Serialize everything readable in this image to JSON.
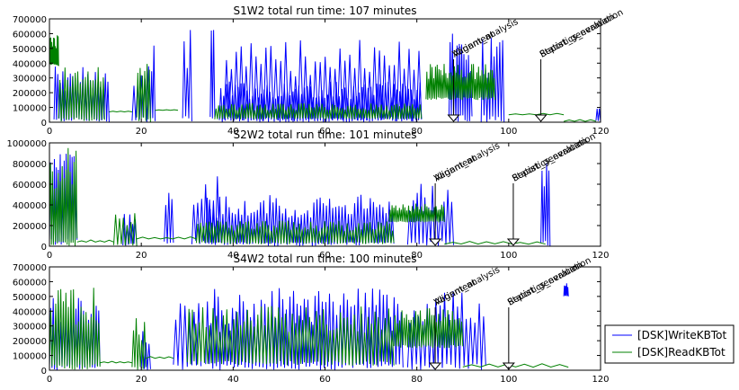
{
  "chart_data": [
    {
      "type": "line",
      "title": "S1W2 total run time: 107 minutes",
      "xlim": [
        0,
        120
      ],
      "ylim": [
        0,
        700000
      ],
      "xticks": [
        0,
        20,
        40,
        60,
        80,
        100,
        120
      ],
      "yticks": [
        0,
        100000,
        200000,
        300000,
        400000,
        500000,
        600000,
        700000
      ],
      "xtick_labels": [
        "0",
        "20",
        "40",
        "60",
        "80",
        "100",
        "120"
      ],
      "ytick_labels": [
        "0",
        "100000",
        "200000",
        "300000",
        "400000",
        "500000",
        "600000",
        "700000"
      ],
      "annotations": [
        {
          "text": "Alignment",
          "x": 88
        },
        {
          "text": "Variant_analysis",
          "x": 88
        },
        {
          "text": "Report_generation",
          "x": 107
        },
        {
          "text": "Statistics_evaluation",
          "x": 107
        }
      ],
      "series": [
        {
          "name": "[DSK]WriteKBTot",
          "color": "#0000ff",
          "segments": [
            {
              "x0": 1,
              "x1": 13,
              "base": 0,
              "peak": 380000,
              "spikes": 22
            },
            {
              "x0": 18,
              "x1": 22,
              "base": 0,
              "peak": 420000,
              "spikes": 5
            },
            {
              "x0": 22,
              "x1": 23,
              "base": 0,
              "peak": 620000,
              "spikes": 2
            },
            {
              "x0": 29,
              "x1": 31,
              "base": 0,
              "peak": 630000,
              "spikes": 3
            },
            {
              "x0": 35,
              "x1": 36,
              "base": 0,
              "peak": 640000,
              "spikes": 2
            },
            {
              "x0": 37,
              "x1": 81,
              "base": 0,
              "peak": 280000,
              "spikes": 70
            },
            {
              "x0": 38,
              "x1": 81,
              "base": 0,
              "peak": 560000,
              "spikes": 40
            },
            {
              "x0": 87,
              "x1": 92,
              "base": 0,
              "peak": 620000,
              "spikes": 10
            },
            {
              "x0": 94,
              "x1": 99,
              "base": 0,
              "peak": 580000,
              "spikes": 8
            },
            {
              "x0": 119,
              "x1": 120,
              "base": 0,
              "peak": 130000,
              "spikes": 2
            }
          ]
        },
        {
          "name": "[DSK]ReadKBTot",
          "color": "#008000",
          "segments": [
            {
              "x0": 0,
              "x1": 2,
              "base": 380000,
              "peak": 590000,
              "spikes": 10
            },
            {
              "x0": 2,
              "x1": 12,
              "base": 0,
              "peak": 390000,
              "spikes": 18
            },
            {
              "x0": 13,
              "x1": 18,
              "base": 70000,
              "peak": 75000,
              "spikes": 3
            },
            {
              "x0": 19,
              "x1": 22,
              "base": 0,
              "peak": 430000,
              "spikes": 6
            },
            {
              "x0": 23,
              "x1": 28,
              "base": 80000,
              "peak": 85000,
              "spikes": 3
            },
            {
              "x0": 36,
              "x1": 81,
              "base": 20000,
              "peak": 130000,
              "spikes": 80
            },
            {
              "x0": 82,
              "x1": 97,
              "base": 150000,
              "peak": 400000,
              "spikes": 40
            },
            {
              "x0": 100,
              "x1": 112,
              "base": 50000,
              "peak": 60000,
              "spikes": 4
            },
            {
              "x0": 112,
              "x1": 119,
              "base": 5000,
              "peak": 20000,
              "spikes": 3
            }
          ]
        }
      ]
    },
    {
      "type": "line",
      "title": "S2W2 total run time: 101 minutes",
      "xlim": [
        0,
        120
      ],
      "ylim": [
        0,
        1000000
      ],
      "xticks": [
        0,
        20,
        40,
        60,
        80,
        100,
        120
      ],
      "yticks": [
        0,
        200000,
        400000,
        600000,
        800000,
        1000000
      ],
      "xtick_labels": [
        "0",
        "20",
        "40",
        "60",
        "80",
        "100",
        "120"
      ],
      "ytick_labels": [
        "0",
        "200000",
        "400000",
        "600000",
        "800000",
        "1000000"
      ],
      "annotations": [
        {
          "text": "Alignment",
          "x": 84
        },
        {
          "text": "Variant_analysis",
          "x": 84
        },
        {
          "text": "Report_generation",
          "x": 101
        },
        {
          "text": "Statistics_evaluation",
          "x": 101
        }
      ],
      "series": [
        {
          "name": "[DSK]WriteKBTot",
          "color": "#0000ff",
          "segments": [
            {
              "x0": 0,
              "x1": 6,
              "base": 0,
              "peak": 900000,
              "spikes": 14
            },
            {
              "x0": 16,
              "x1": 19,
              "base": 0,
              "peak": 320000,
              "spikes": 5
            },
            {
              "x0": 25,
              "x1": 27,
              "base": 0,
              "peak": 720000,
              "spikes": 3
            },
            {
              "x0": 31,
              "x1": 37,
              "base": 0,
              "peak": 700000,
              "spikes": 7
            },
            {
              "x0": 34,
              "x1": 75,
              "base": 0,
              "peak": 500000,
              "spikes": 60
            },
            {
              "x0": 78,
              "x1": 88,
              "base": 0,
              "peak": 620000,
              "spikes": 12
            },
            {
              "x0": 107,
              "x1": 109,
              "base": 0,
              "peak": 980000,
              "spikes": 4
            }
          ]
        },
        {
          "name": "[DSK]ReadKBTot",
          "color": "#008000",
          "segments": [
            {
              "x0": 0,
              "x1": 6,
              "base": 0,
              "peak": 980000,
              "spikes": 14
            },
            {
              "x0": 6,
              "x1": 14,
              "base": 40000,
              "peak": 60000,
              "spikes": 4
            },
            {
              "x0": 14,
              "x1": 19,
              "base": 0,
              "peak": 330000,
              "spikes": 6
            },
            {
              "x0": 19,
              "x1": 32,
              "base": 70000,
              "peak": 90000,
              "spikes": 5
            },
            {
              "x0": 32,
              "x1": 75,
              "base": 20000,
              "peak": 250000,
              "spikes": 70
            },
            {
              "x0": 74,
              "x1": 86,
              "base": 230000,
              "peak": 420000,
              "spikes": 30
            },
            {
              "x0": 86,
              "x1": 108,
              "base": 20000,
              "peak": 50000,
              "spikes": 6
            }
          ]
        }
      ]
    },
    {
      "type": "line",
      "title": "S4W2 total run time: 100 minutes",
      "xlim": [
        0,
        120
      ],
      "ylim": [
        0,
        700000
      ],
      "xticks": [
        0,
        20,
        40,
        60,
        80,
        100,
        120
      ],
      "yticks": [
        0,
        100000,
        200000,
        300000,
        400000,
        500000,
        600000,
        700000
      ],
      "xtick_labels": [
        "0",
        "20",
        "40",
        "60",
        "80",
        "100",
        "120"
      ],
      "ytick_labels": [
        "0",
        "100000",
        "200000",
        "300000",
        "400000",
        "500000",
        "600000",
        "700000"
      ],
      "annotations": [
        {
          "text": "Alignment",
          "x": 84
        },
        {
          "text": "Variant_analysis",
          "x": 84
        },
        {
          "text": "Report_generation",
          "x": 100
        },
        {
          "text": "Statistics_evaluation",
          "x": 100
        }
      ],
      "series": [
        {
          "name": "[DSK]WriteKBTot",
          "color": "#0000ff",
          "segments": [
            {
              "x0": 0,
              "x1": 11,
              "base": 0,
              "peak": 520000,
              "spikes": 20
            },
            {
              "x0": 20,
              "x1": 22,
              "base": 0,
              "peak": 300000,
              "spikes": 3
            },
            {
              "x0": 27,
              "x1": 33,
              "base": 0,
              "peak": 500000,
              "spikes": 6
            },
            {
              "x0": 34,
              "x1": 77,
              "base": 0,
              "peak": 560000,
              "spikes": 55
            },
            {
              "x0": 78,
              "x1": 95,
              "base": 0,
              "peak": 560000,
              "spikes": 18
            },
            {
              "x0": 112,
              "x1": 113,
              "base": 500000,
              "peak": 600000,
              "spikes": 4
            }
          ]
        },
        {
          "name": "[DSK]ReadKBTot",
          "color": "#008000",
          "segments": [
            {
              "x0": 0,
              "x1": 11,
              "base": 0,
              "peak": 560000,
              "spikes": 20
            },
            {
              "x0": 11,
              "x1": 18,
              "base": 50000,
              "peak": 60000,
              "spikes": 4
            },
            {
              "x0": 18,
              "x1": 21,
              "base": 0,
              "peak": 360000,
              "spikes": 5
            },
            {
              "x0": 21,
              "x1": 27,
              "base": 80000,
              "peak": 95000,
              "spikes": 3
            },
            {
              "x0": 30,
              "x1": 75,
              "base": 30000,
              "peak": 440000,
              "spikes": 60
            },
            {
              "x0": 75,
              "x1": 90,
              "base": 150000,
              "peak": 420000,
              "spikes": 30
            },
            {
              "x0": 90,
              "x1": 113,
              "base": 20000,
              "peak": 50000,
              "spikes": 6
            }
          ]
        }
      ]
    }
  ],
  "legend": {
    "placement": "right",
    "items": [
      {
        "label": "[DSK]WriteKBTot",
        "color": "#0000ff"
      },
      {
        "label": "[DSK]ReadKBTot",
        "color": "#008000"
      }
    ]
  }
}
